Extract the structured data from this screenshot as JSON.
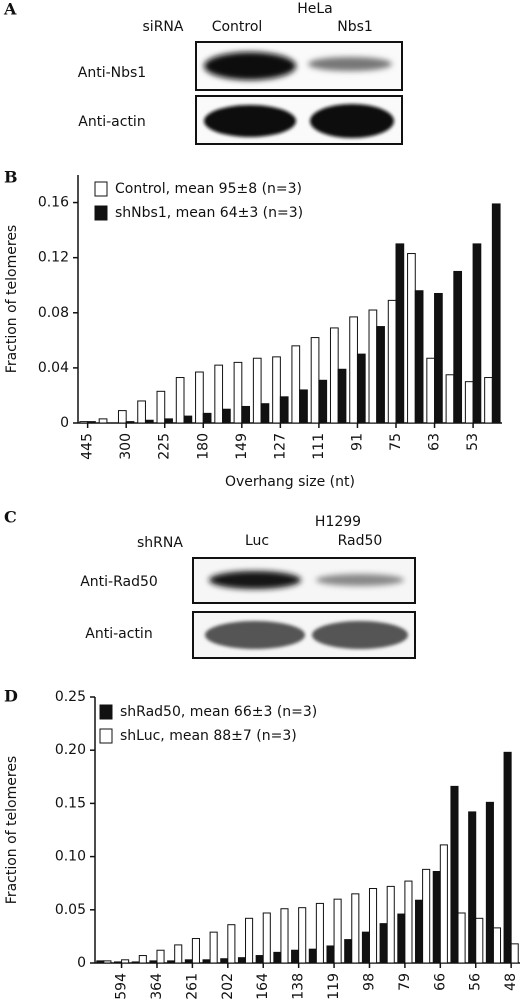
{
  "blots": [
    {
      "panel": "A",
      "cell_line": "HeLa",
      "reagent": "siRNA",
      "lanes": [
        "Control",
        "Nbs1"
      ],
      "rows": [
        "Anti-Nbs1",
        "Anti-actin"
      ]
    },
    {
      "panel": "C",
      "cell_line": "H1299",
      "reagent": "shRNA",
      "lanes": [
        "Luc",
        "Rad50"
      ],
      "rows": [
        "Anti-Rad50",
        "Anti-actin"
      ]
    }
  ],
  "chart_data": [
    {
      "type": "bar",
      "panel": "B",
      "x_label": "Overhang size (nt)",
      "y_label": "Fraction of telomeres",
      "categories": [
        "445",
        null,
        "300",
        null,
        "225",
        null,
        "180",
        null,
        "149",
        null,
        "127",
        null,
        "111",
        null,
        "91",
        null,
        "75",
        null,
        "63",
        null,
        "53",
        null
      ],
      "series": [
        {
          "name": "Control, mean 95±8 (n=3)",
          "color": "#ffffff",
          "values": [
            0.001,
            0.003,
            0.009,
            0.016,
            0.023,
            0.033,
            0.037,
            0.042,
            0.044,
            0.047,
            0.048,
            0.056,
            0.062,
            0.069,
            0.077,
            0.082,
            0.089,
            0.123,
            0.047,
            0.035,
            0.03,
            0.033
          ]
        },
        {
          "name": "shNbs1, mean 64±3 (n=3)",
          "color": "#111111",
          "values": [
            0.001,
            0,
            0.001,
            0.002,
            0.003,
            0.005,
            0.007,
            0.01,
            0.012,
            0.014,
            0.019,
            0.024,
            0.031,
            0.039,
            0.05,
            0.07,
            0.13,
            0.096,
            0.094,
            0.11,
            0.13,
            0.159
          ]
        }
      ],
      "ylim": [
        0,
        0.18
      ],
      "yticks": [
        0,
        0.04,
        0.08,
        0.12,
        0.16
      ],
      "grid": false,
      "legend": "top-left"
    },
    {
      "type": "bar",
      "panel": "D",
      "x_label": "Overhang size (nt)",
      "y_label": "Fraction of  telomeres",
      "categories": [
        null,
        "594",
        null,
        "364",
        null,
        "261",
        null,
        "202",
        null,
        "164",
        null,
        "138",
        null,
        "119",
        null,
        "98",
        null,
        "79",
        null,
        "66",
        null,
        "56",
        null,
        "48"
      ],
      "series": [
        {
          "name": "shRad50, mean 66±3 (n=3)",
          "color": "#111111",
          "values": [
            0.002,
            0.001,
            0.001,
            0.002,
            0.002,
            0.003,
            0.003,
            0.004,
            0.005,
            0.007,
            0.01,
            0.012,
            0.013,
            0.016,
            0.022,
            0.029,
            0.037,
            0.046,
            0.059,
            0.086,
            0.166,
            0.142,
            0.151,
            0.198
          ]
        },
        {
          "name": "shLuc, mean 88±7 (n=3)",
          "color": "#ffffff",
          "values": [
            0.002,
            0.003,
            0.007,
            0.012,
            0.017,
            0.023,
            0.029,
            0.036,
            0.042,
            0.047,
            0.051,
            0.052,
            0.056,
            0.06,
            0.065,
            0.07,
            0.072,
            0.077,
            0.088,
            0.111,
            0.047,
            0.042,
            0.033,
            0.018
          ]
        }
      ],
      "ylim": [
        0,
        0.25
      ],
      "yticks": [
        0,
        0.05,
        {
          "value": 0.1,
          "label": "0.10"
        },
        0.15,
        {
          "value": 0.2,
          "label": "0.20"
        },
        0.25
      ],
      "grid": false,
      "legend": "top-left"
    }
  ]
}
